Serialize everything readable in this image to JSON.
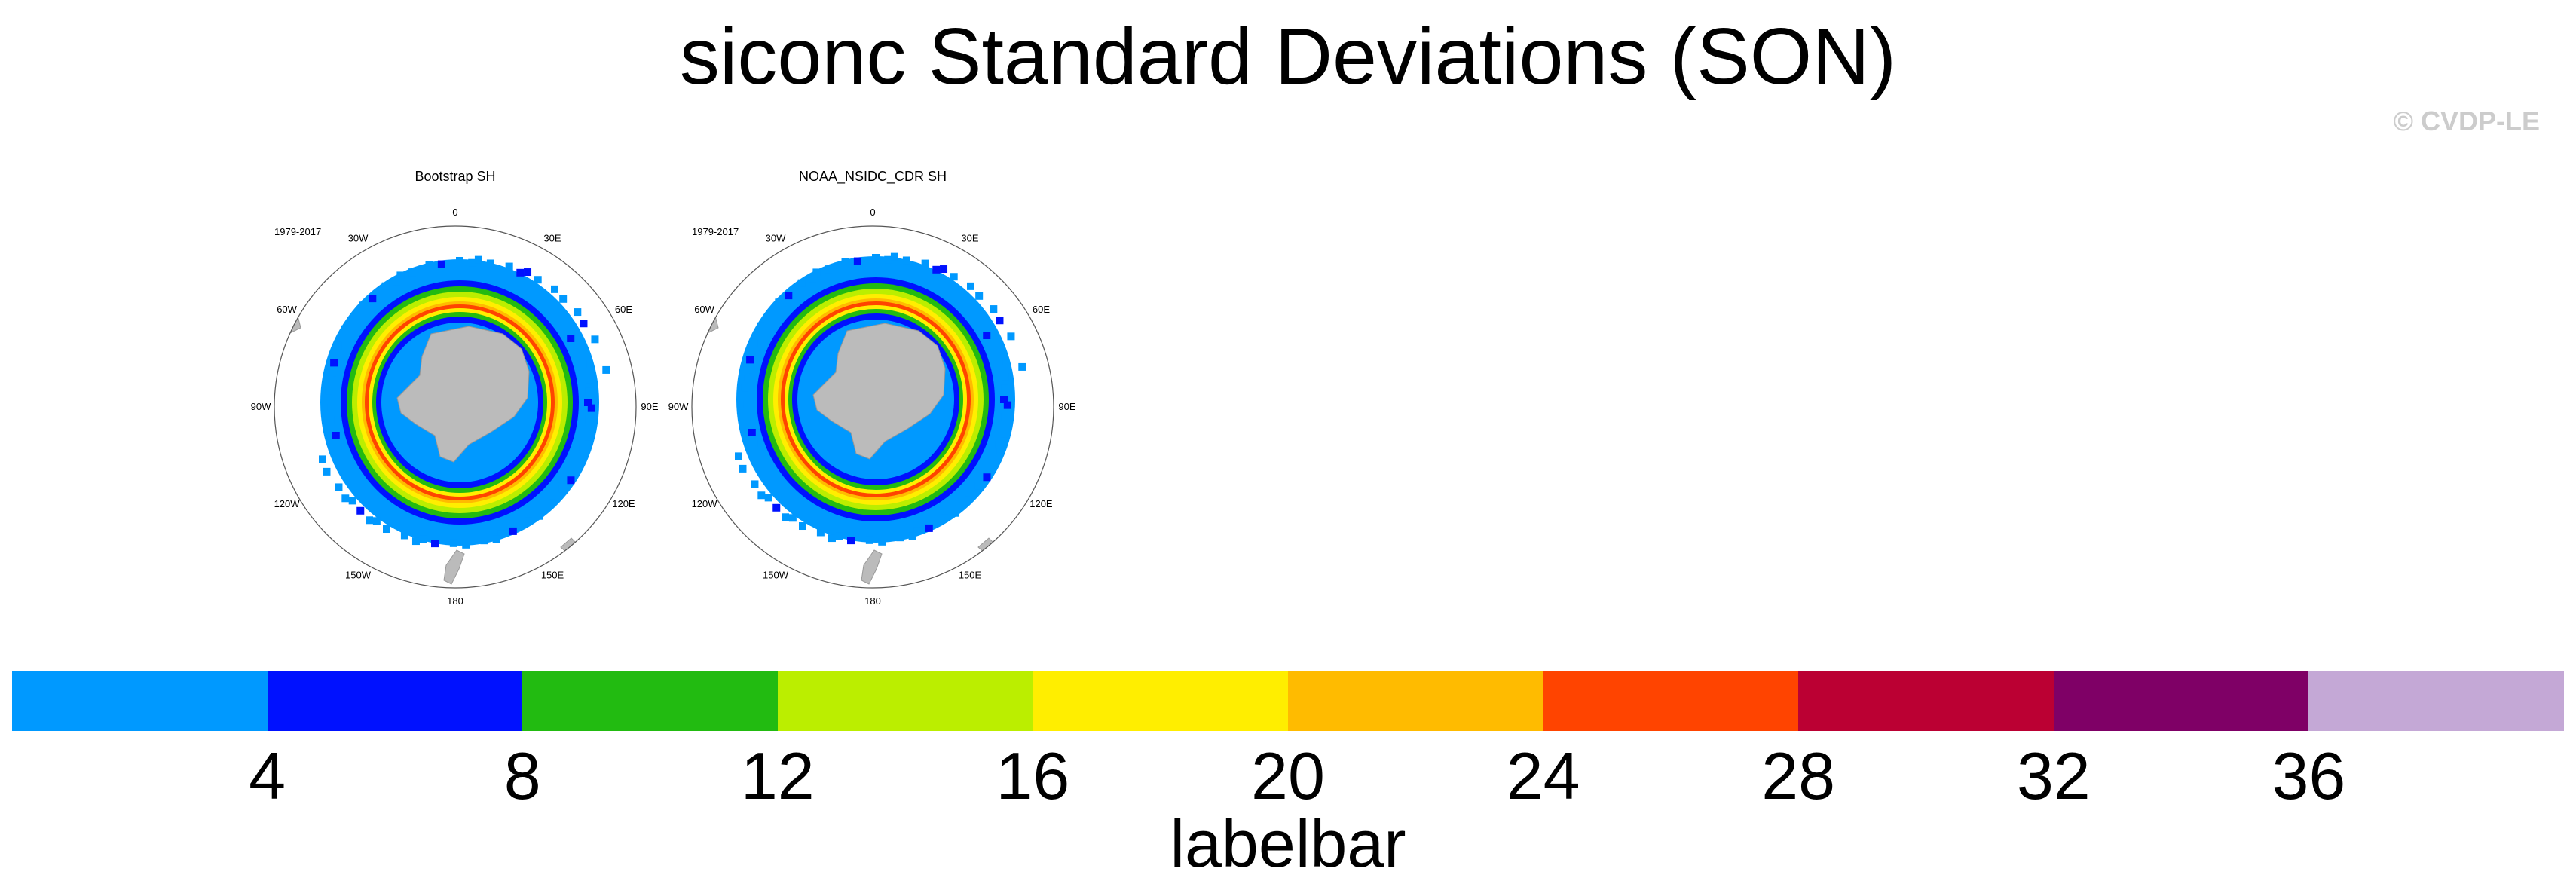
{
  "title": "siconc Standard Deviations (SON)",
  "copyright": "© CVDP-LE",
  "panels": [
    {
      "title": "Bootstrap SH",
      "period": "1979-2017"
    },
    {
      "title": "NOAA_NSIDC_CDR SH",
      "period": "1979-2017"
    }
  ],
  "longitude_labels": [
    "0",
    "30E",
    "60E",
    "90E",
    "120E",
    "150E",
    "180",
    "150W",
    "120W",
    "90W",
    "60W",
    "30W"
  ],
  "labelbar": {
    "label": "labelbar",
    "ticks": [
      "4",
      "8",
      "12",
      "16",
      "20",
      "24",
      "28",
      "32",
      "36"
    ],
    "colors": [
      "#0099ff",
      "#0011ff",
      "#22bb11",
      "#bbee00",
      "#ffee00",
      "#ffbb00",
      "#ff4400",
      "#bb0033",
      "#7f0066",
      "#c4a8d6"
    ]
  },
  "map_colors": {
    "land": "#bbbbbb",
    "ocean": "#ffffff",
    "outline": "#555555"
  }
}
